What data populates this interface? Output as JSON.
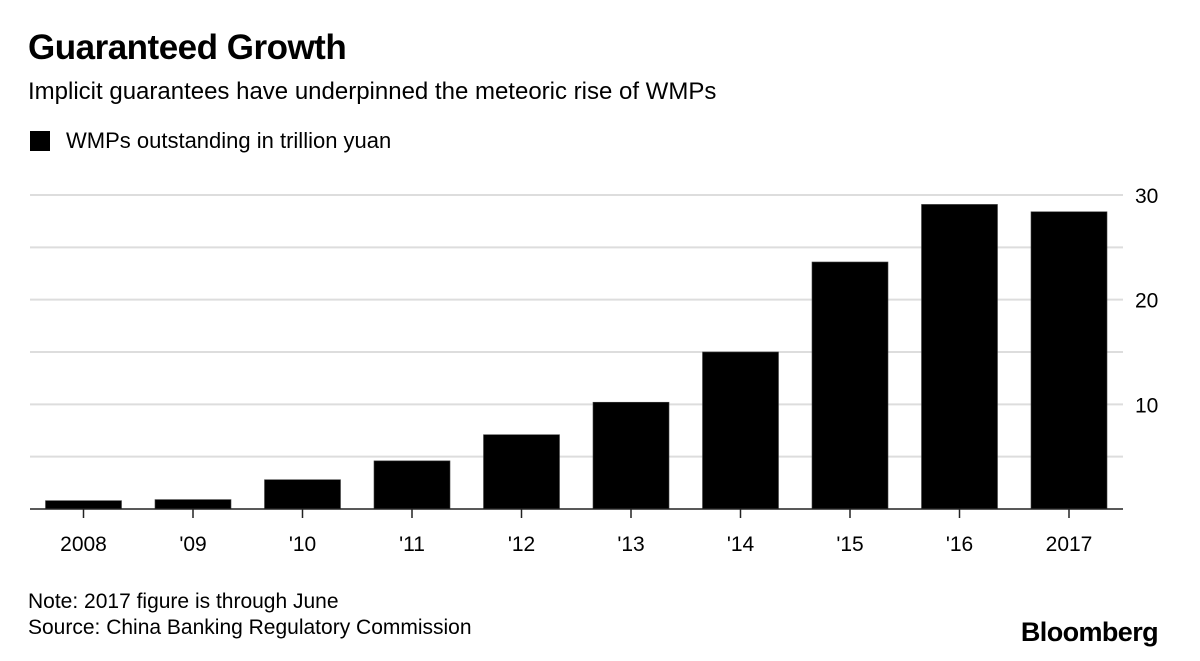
{
  "header": {
    "title": "Guaranteed Growth",
    "subtitle": "Implicit guarantees have underpinned the meteoric rise of WMPs"
  },
  "legend": {
    "label": "WMPs outstanding in trillion yuan",
    "color": "#000000"
  },
  "footer": {
    "note": "Note: 2017 figure is through June",
    "source": "Source: China Banking Regulatory Commission",
    "brand": "Bloomberg"
  },
  "chart_data": {
    "type": "bar",
    "title": "Guaranteed Growth",
    "subtitle": "Implicit guarantees have underpinned the meteoric rise of WMPs",
    "categories": [
      "2008",
      "'09",
      "'10",
      "'11",
      "'12",
      "'13",
      "'14",
      "'15",
      "'16",
      "2017"
    ],
    "series": [
      {
        "name": "WMPs outstanding in trillion yuan",
        "color": "#000000",
        "values": [
          0.8,
          0.9,
          2.8,
          4.6,
          7.1,
          10.2,
          15.0,
          23.6,
          29.1,
          28.4
        ]
      }
    ],
    "xlabel": "",
    "ylabel": "",
    "ylim": [
      0,
      30
    ],
    "yticks": [
      10,
      20,
      30
    ],
    "ytick_labels": [
      "10",
      "20",
      "30"
    ],
    "gridlines": [
      5,
      10,
      15,
      20,
      25,
      30
    ],
    "grid": true,
    "y_axis_position": "right",
    "legend_position": "top-left",
    "grid_color": "#dddddd"
  }
}
